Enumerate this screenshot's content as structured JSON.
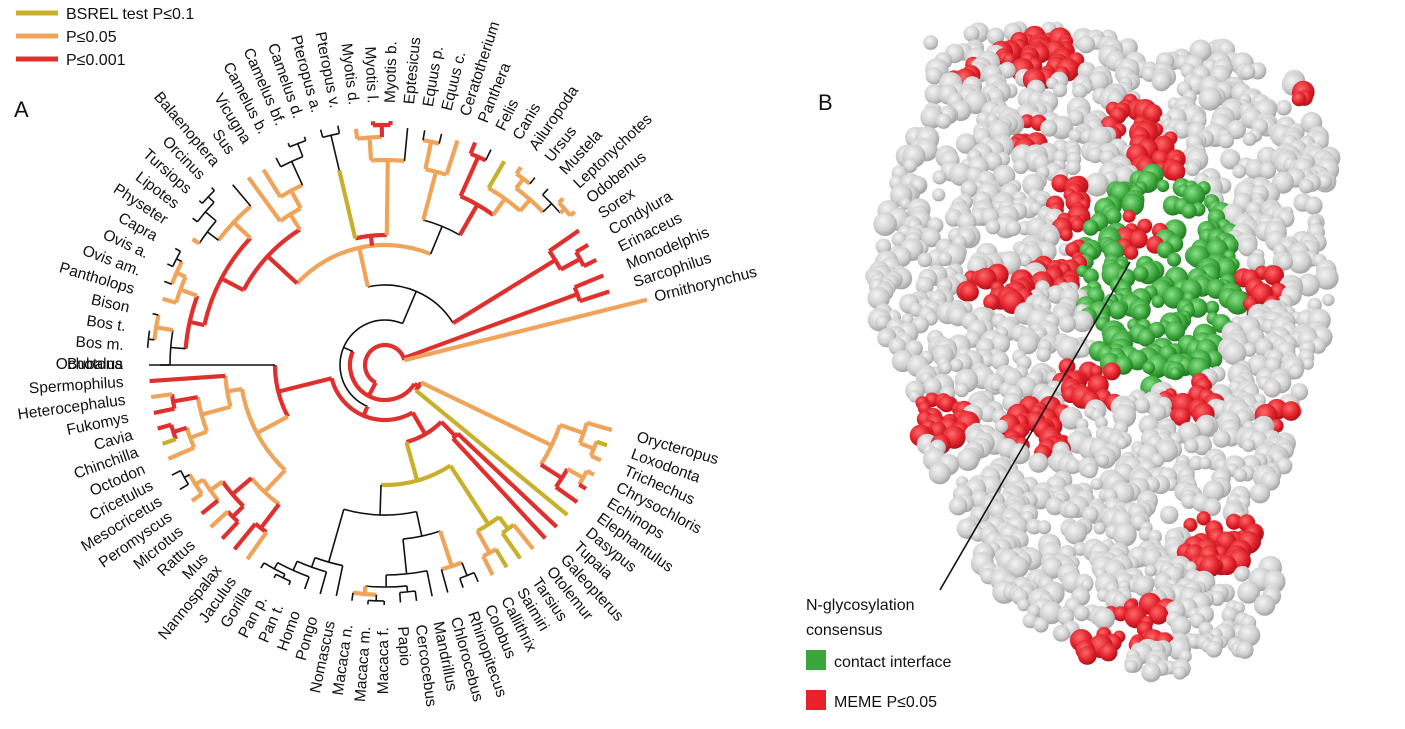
{
  "panel_a": {
    "label": "A",
    "legend": [
      {
        "text": "BSREL test P≤0.1",
        "color": "#c8b02d"
      },
      {
        "text": "P≤0.05",
        "color": "#f0a45a"
      },
      {
        "text": "P≤0.001",
        "color": "#e0302e"
      }
    ],
    "taxa": [
      "Bubalus",
      "Bos m.",
      "Bos t.",
      "Bison",
      "Pantholops",
      "Ovis am.",
      "Ovis a.",
      "Capra",
      "Physeter",
      "Lipotes",
      "Tursiops",
      "Orcinus",
      "Balaenoptera",
      "Sus",
      "Vicugna",
      "Camelus b.",
      "Camelus bf.",
      "Camelus d.",
      "Pteropus a.",
      "Pteropus v.",
      "Myotis d.",
      "Myotis l.",
      "Myotis b.",
      "Eptesicus",
      "Equus p.",
      "Equus c.",
      "Ceratotherium",
      "Panthera",
      "Felis",
      "Canis",
      "Ailuropoda",
      "Ursus",
      "Mustela",
      "Leptonychotes",
      "Odobenus",
      "Sorex",
      "Condylura",
      "Erinaceus",
      "Monodelphis",
      "Sarcophilus",
      "Ornithorynchus",
      "Orycteropus",
      "Loxodonta",
      "Trichechus",
      "Chrysochloris",
      "Echinops",
      "Elephantulus",
      "Dasypus",
      "Tupaia",
      "Galeopterus",
      "Otolemur",
      "Tarsius",
      "Saimiri",
      "Callithrix",
      "Colobus",
      "Rhinopitecus",
      "Chlorocebus",
      "Mandrillus",
      "Cercocebus",
      "Papio",
      "Macaca f.",
      "Macaca m.",
      "Macaca n.",
      "Nomascus",
      "Pongo",
      "Homo",
      "Pan t.",
      "Pan p.",
      "Gorilla",
      "Jaculus",
      "Nannospalax",
      "Mus",
      "Rattus",
      "Microtus",
      "Peromyscus",
      "Mesocricetus",
      "Cricetulus",
      "Octodon",
      "Chinchilla",
      "Cavia",
      "Fukomys",
      "Heterocephalus",
      "Spermophilus",
      "Ochotona"
    ]
  },
  "panel_b": {
    "label": "B",
    "annotation_line1": "N-glycosylation",
    "annotation_line2": "consensus",
    "legend": [
      {
        "text": "contact interface",
        "color": "#3aa53a"
      },
      {
        "text": "MEME P≤0.05",
        "color": "#e8202a"
      }
    ]
  },
  "colors": {
    "black": "#111111",
    "bsrel": "#c8b02d",
    "p005": "#f0a45a",
    "p0001": "#e0302e",
    "surface": "#c9c9c9",
    "surface_light": "#e6e6e6",
    "green": "#3aa53a",
    "red": "#e0202a"
  }
}
